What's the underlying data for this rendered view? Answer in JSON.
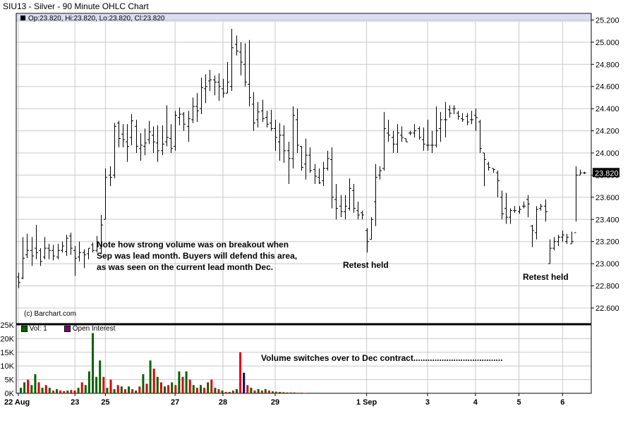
{
  "header": {
    "title": "SIU13 - Silver - 90 Minute OHLC Chart",
    "ohlc_legend": "Op:23.820, Hi:23.820, Lo:23.820, Cl:23.820",
    "copyright": "(c) Barchart.com"
  },
  "colors": {
    "price_bar": "#000000",
    "legend_band": "#dcdcf2",
    "grid": "#c8c8c8",
    "vol_up": "#006400",
    "vol_down": "#e00000",
    "vol_current": "#000080",
    "open_interest": "#7f007f"
  },
  "annotations": {
    "note_lines": [
      "Note how strong volume was on breakout when",
      "Sep was lead month.  Buyers will defend this area,",
      "as was seen on the current lead month Dec."
    ],
    "retest_1": "Retest held",
    "retest_2": "Retest held",
    "volume_note": "Volume switches over to Dec contract......................................"
  },
  "chart_data": [
    {
      "type": "ohlc",
      "title": "SIU13 - Silver - 90 Minute OHLC Chart",
      "y_ticks": [
        "25.200",
        "25.000",
        "24.800",
        "24.600",
        "24.400",
        "24.200",
        "24.000",
        "23.800",
        "23.600",
        "23.400",
        "23.200",
        "23.000",
        "22.800",
        "22.600"
      ],
      "ylim": [
        22.46,
        25.26
      ],
      "last_price_label": "23.820",
      "last_price": 23.82,
      "x_ticks": [
        "22 Aug",
        "23",
        "25",
        "27",
        "28",
        "29",
        "1 Sep",
        "3",
        "4",
        "5",
        "6"
      ],
      "x_tick_bar_index": [
        0,
        13,
        20,
        36,
        47,
        59,
        80,
        94,
        105,
        115,
        125
      ],
      "grid": true,
      "bars": [
        [
          22.88,
          22.92,
          22.78,
          22.83
        ],
        [
          22.87,
          23.24,
          22.86,
          23.05
        ],
        [
          23.08,
          23.27,
          23.05,
          23.12
        ],
        [
          23.12,
          23.24,
          22.98,
          23.07
        ],
        [
          23.14,
          23.35,
          23.04,
          23.1
        ],
        [
          23.12,
          23.14,
          22.98,
          23.02
        ],
        [
          23.06,
          23.24,
          23.04,
          23.14
        ],
        [
          23.14,
          23.18,
          23.04,
          23.12
        ],
        [
          23.12,
          23.17,
          23.03,
          23.07
        ],
        [
          23.06,
          23.18,
          23.04,
          23.12
        ],
        [
          23.12,
          23.2,
          23.1,
          23.16
        ],
        [
          23.11,
          23.26,
          23.07,
          23.23
        ],
        [
          23.25,
          23.28,
          23.08,
          23.14
        ],
        [
          23.12,
          23.16,
          22.89,
          23.05
        ],
        [
          23.06,
          23.2,
          23.02,
          23.1
        ],
        [
          23.1,
          23.13,
          22.96,
          23.08
        ],
        [
          23.09,
          23.14,
          23.04,
          23.14
        ],
        [
          23.17,
          23.19,
          23.1,
          23.12
        ],
        [
          23.12,
          23.25,
          23.1,
          23.16
        ],
        [
          23.14,
          23.44,
          23.09,
          23.35
        ],
        [
          23.4,
          23.86,
          23.4,
          23.78
        ],
        [
          23.8,
          23.88,
          23.7,
          23.78
        ],
        [
          23.8,
          24.27,
          23.77,
          24.24
        ],
        [
          24.27,
          24.29,
          24.05,
          24.13
        ],
        [
          24.17,
          24.26,
          24.05,
          24.12
        ],
        [
          24.1,
          24.26,
          23.92,
          24.06
        ],
        [
          24.14,
          24.35,
          24.07,
          24.29
        ],
        [
          24.24,
          24.3,
          24.0,
          24.06
        ],
        [
          24.04,
          24.18,
          23.93,
          24.07
        ],
        [
          24.06,
          24.22,
          23.98,
          24.09
        ],
        [
          24.12,
          24.29,
          24.08,
          24.19
        ],
        [
          24.16,
          24.24,
          24.0,
          24.1
        ],
        [
          24.09,
          24.25,
          23.92,
          24.02
        ],
        [
          24.02,
          24.25,
          23.98,
          24.08
        ],
        [
          24.1,
          24.43,
          24.06,
          24.14
        ],
        [
          24.13,
          24.26,
          24.0,
          24.04
        ],
        [
          24.06,
          24.38,
          24.02,
          24.34
        ],
        [
          24.32,
          24.41,
          24.25,
          24.35
        ],
        [
          24.35,
          24.37,
          24.2,
          24.26
        ],
        [
          24.24,
          24.38,
          24.1,
          24.31
        ],
        [
          24.3,
          24.5,
          24.27,
          24.42
        ],
        [
          24.42,
          24.54,
          24.28,
          24.38
        ],
        [
          24.4,
          24.68,
          24.35,
          24.59
        ],
        [
          24.58,
          24.71,
          24.45,
          24.6
        ],
        [
          24.65,
          24.75,
          24.56,
          24.66
        ],
        [
          24.66,
          24.7,
          24.52,
          24.64
        ],
        [
          24.64,
          24.72,
          24.47,
          24.6
        ],
        [
          24.58,
          24.67,
          24.5,
          24.54
        ],
        [
          24.54,
          24.82,
          24.54,
          24.64
        ],
        [
          24.6,
          25.12,
          24.56,
          24.95
        ],
        [
          24.98,
          25.06,
          24.88,
          24.92
        ],
        [
          24.91,
          25.0,
          24.7,
          24.82
        ],
        [
          24.8,
          24.99,
          24.6,
          24.64
        ],
        [
          24.62,
          25.02,
          24.42,
          24.5
        ],
        [
          24.44,
          24.55,
          24.2,
          24.27
        ],
        [
          24.3,
          24.46,
          24.23,
          24.37
        ],
        [
          24.38,
          24.48,
          24.28,
          24.31
        ],
        [
          24.32,
          24.38,
          24.23,
          24.26
        ],
        [
          24.27,
          24.39,
          24.2,
          24.22
        ],
        [
          24.22,
          24.3,
          24.02,
          24.14
        ],
        [
          24.1,
          24.27,
          23.93,
          24.16
        ],
        [
          24.16,
          24.25,
          23.91,
          24.02
        ],
        [
          24.02,
          24.1,
          23.72,
          23.95
        ],
        [
          23.95,
          24.42,
          23.86,
          24.34
        ],
        [
          24.3,
          24.4,
          24.0,
          24.07
        ],
        [
          24.06,
          24.06,
          23.84,
          23.87
        ],
        [
          23.9,
          24.13,
          23.76,
          23.98
        ],
        [
          23.98,
          24.05,
          23.82,
          23.84
        ],
        [
          23.85,
          23.9,
          23.72,
          23.79
        ],
        [
          23.78,
          23.86,
          23.72,
          23.73
        ],
        [
          23.75,
          23.92,
          23.7,
          23.86
        ],
        [
          23.86,
          24.02,
          23.84,
          23.95
        ],
        [
          23.94,
          24.05,
          23.5,
          23.6
        ],
        [
          23.58,
          23.72,
          23.4,
          23.5
        ],
        [
          23.52,
          23.62,
          23.42,
          23.47
        ],
        [
          23.47,
          23.62,
          23.4,
          23.52
        ],
        [
          23.5,
          23.77,
          23.48,
          23.68
        ],
        [
          23.66,
          23.72,
          23.46,
          23.5
        ],
        [
          23.48,
          23.56,
          23.4,
          23.44
        ],
        [
          23.46,
          23.48,
          23.4,
          23.44
        ],
        [
          23.3,
          23.32,
          23.1,
          23.2
        ],
        [
          23.22,
          23.42,
          23.22,
          23.4
        ],
        [
          23.56,
          23.9,
          23.34,
          23.78
        ],
        [
          23.8,
          23.88,
          23.76,
          23.84
        ],
        [
          23.86,
          24.37,
          23.84,
          24.22
        ],
        [
          24.18,
          24.3,
          24.1,
          24.16
        ],
        [
          24.14,
          24.2,
          24.0,
          24.08
        ],
        [
          24.08,
          24.26,
          24.0,
          24.18
        ],
        [
          24.16,
          24.24,
          24.1,
          24.14
        ],
        [
          24.13,
          24.13,
          24.1,
          24.1
        ],
        [
          24.18,
          24.2,
          24.16,
          24.18
        ],
        [
          24.18,
          24.26,
          24.14,
          24.2
        ],
        [
          24.22,
          24.24,
          24.12,
          24.14
        ],
        [
          24.12,
          24.23,
          24.02,
          24.08
        ],
        [
          24.07,
          24.3,
          24.02,
          24.07
        ],
        [
          24.07,
          24.2,
          24.0,
          24.07
        ],
        [
          24.07,
          24.42,
          24.05,
          24.2
        ],
        [
          24.22,
          24.37,
          24.1,
          24.3
        ],
        [
          24.3,
          24.46,
          24.14,
          24.3
        ],
        [
          24.39,
          24.43,
          24.32,
          24.36
        ],
        [
          24.4,
          24.43,
          24.35,
          24.4
        ],
        [
          24.36,
          24.38,
          24.3,
          24.33
        ],
        [
          24.31,
          24.36,
          24.28,
          24.3
        ],
        [
          24.33,
          24.36,
          24.25,
          24.28
        ],
        [
          24.3,
          24.38,
          24.26,
          24.3
        ],
        [
          24.34,
          24.4,
          24.2,
          24.32
        ],
        [
          24.28,
          24.3,
          24.0,
          24.04
        ],
        [
          24.0,
          24.0,
          23.7,
          23.94
        ],
        [
          23.9,
          23.92,
          23.84,
          23.87
        ],
        [
          23.86,
          23.86,
          23.82,
          23.85
        ],
        [
          23.82,
          23.84,
          23.6,
          23.75
        ],
        [
          23.6,
          23.66,
          23.4,
          23.45
        ],
        [
          23.5,
          23.64,
          23.36,
          23.42
        ],
        [
          23.42,
          23.5,
          23.36,
          23.48
        ],
        [
          23.48,
          23.52,
          23.46,
          23.48
        ],
        [
          23.47,
          23.52,
          23.45,
          23.49
        ],
        [
          23.52,
          23.56,
          23.5,
          23.52
        ],
        [
          23.58,
          23.62,
          23.42,
          23.54
        ],
        [
          23.34,
          23.35,
          23.15,
          23.3
        ],
        [
          23.28,
          23.52,
          23.22,
          23.49
        ],
        [
          23.5,
          23.54,
          23.48,
          23.52
        ],
        [
          23.52,
          23.58,
          23.38,
          23.47
        ],
        [
          23.0,
          23.22,
          23.0,
          23.14
        ],
        [
          23.14,
          23.24,
          23.12,
          23.2
        ],
        [
          23.2,
          23.26,
          23.16,
          23.24
        ],
        [
          23.24,
          23.3,
          23.2,
          23.26
        ],
        [
          23.2,
          23.27,
          23.18,
          23.24
        ],
        [
          23.18,
          23.29,
          23.18,
          23.2
        ],
        [
          23.28,
          23.88,
          23.38,
          23.8
        ],
        [
          23.8,
          23.85,
          23.8,
          23.82
        ],
        [
          23.82,
          23.83,
          23.81,
          23.82
        ]
      ]
    },
    {
      "type": "bar",
      "title": "",
      "legend": [
        "Vol: 1",
        "Open Interest"
      ],
      "y_ticks": [
        "25K",
        "20K",
        "15K",
        "10K",
        "5K",
        "0K"
      ],
      "ylim": [
        0,
        25000
      ],
      "volume": [
        2000,
        4000,
        5000,
        3000,
        7000,
        4000,
        2000,
        3000,
        2000,
        1000,
        1500,
        1000,
        800,
        1000,
        1200,
        1000,
        2000,
        4000,
        3000,
        8000,
        22000,
        6000,
        12000,
        6000,
        2000,
        5000,
        1500,
        3000,
        2500,
        1500,
        2500,
        1500,
        1000,
        2500,
        7000,
        3500,
        12000,
        9000,
        6000,
        4000,
        2500,
        3000,
        4000,
        3000,
        8000,
        6000,
        8000,
        5000,
        3000,
        2000,
        3000,
        2000,
        4000,
        5000,
        2000,
        1500,
        1000,
        500,
        500,
        1000,
        1500,
        15000,
        7500,
        3000,
        2000,
        1000,
        1500,
        1000,
        1500,
        1000,
        700,
        600,
        500,
        400,
        300,
        300,
        300,
        200,
        200,
        100
      ],
      "up_flags": [
        1,
        1,
        0,
        1,
        1,
        0,
        1,
        0,
        1,
        0,
        1,
        0,
        0,
        1,
        0,
        0,
        1,
        0,
        1,
        1,
        1,
        1,
        1,
        0,
        1,
        0,
        1,
        0,
        1,
        0,
        1,
        0,
        1,
        0,
        1,
        0,
        1,
        0,
        1,
        0,
        1,
        0,
        1,
        0,
        1,
        0,
        1,
        0,
        1,
        0,
        1,
        0,
        1,
        0,
        1,
        0,
        1,
        0,
        1,
        0,
        1,
        0,
        1,
        0,
        1,
        0,
        1,
        0,
        1,
        0,
        1,
        0,
        1,
        0,
        1,
        0,
        1,
        0,
        1,
        0
      ],
      "current_volume_index": 62
    }
  ]
}
